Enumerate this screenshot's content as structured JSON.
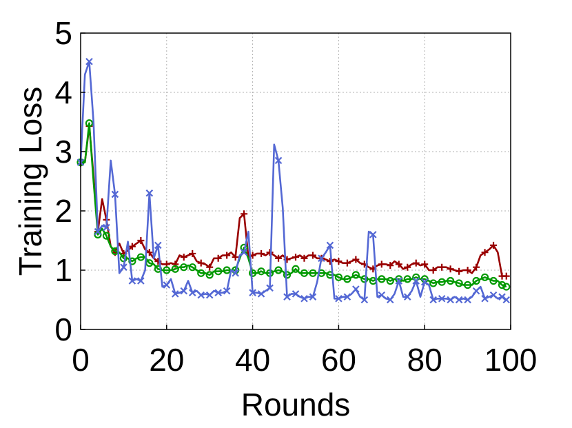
{
  "chart_data": {
    "type": "line",
    "title": "",
    "xlabel": "Rounds",
    "ylabel": "Training Loss",
    "xlim": [
      0,
      100
    ],
    "ylim": [
      0,
      5
    ],
    "xticks": [
      "0",
      "20",
      "40",
      "60",
      "80",
      "100"
    ],
    "yticks": [
      "0",
      "1",
      "2",
      "3",
      "4",
      "5"
    ],
    "grid": true,
    "legend": "none",
    "series": [
      {
        "color": "#990000",
        "marker": "plus",
        "x": [
          0,
          1,
          2,
          3,
          4,
          5,
          6,
          7,
          8,
          9,
          10,
          11,
          12,
          13,
          14,
          15,
          16,
          17,
          18,
          19,
          20,
          21,
          22,
          23,
          24,
          25,
          26,
          27,
          28,
          29,
          30,
          31,
          32,
          33,
          34,
          35,
          36,
          37,
          38,
          39,
          40,
          41,
          42,
          43,
          44,
          45,
          46,
          47,
          48,
          49,
          50,
          51,
          52,
          53,
          54,
          55,
          56,
          57,
          58,
          59,
          60,
          61,
          62,
          63,
          64,
          65,
          66,
          67,
          68,
          69,
          70,
          71,
          72,
          73,
          74,
          75,
          76,
          77,
          78,
          79,
          80,
          81,
          82,
          83,
          84,
          85,
          86,
          87,
          88,
          89,
          90,
          91,
          92,
          93,
          94,
          95,
          96,
          97,
          98,
          99
        ],
        "y": [
          2.8,
          2.82,
          3.43,
          2.6,
          1.65,
          2.2,
          1.85,
          1.4,
          1.3,
          1.45,
          1.28,
          1.33,
          1.4,
          1.45,
          1.5,
          1.35,
          1.3,
          1.2,
          1.15,
          1.1,
          1.1,
          1.12,
          1.1,
          1.25,
          1.22,
          1.25,
          1.28,
          1.15,
          1.12,
          1.1,
          1.05,
          1.2,
          1.2,
          1.25,
          1.25,
          1.3,
          1.22,
          1.88,
          1.95,
          1.22,
          1.25,
          1.28,
          1.28,
          1.25,
          1.3,
          1.25,
          1.2,
          1.25,
          1.18,
          1.2,
          1.22,
          1.25,
          1.2,
          1.25,
          1.25,
          1.2,
          1.2,
          1.18,
          1.15,
          1.18,
          1.15,
          1.12,
          1.12,
          1.15,
          1.18,
          1.12,
          1.1,
          1.05,
          1.02,
          1.08,
          1.1,
          1.1,
          1.08,
          1.15,
          1.1,
          1.02,
          1.05,
          1.1,
          1.12,
          1.08,
          1.1,
          1.0,
          1.0,
          1.05,
          1.05,
          1.05,
          1.02,
          1.0,
          0.98,
          1.0,
          1.0,
          0.95,
          1.05,
          1.25,
          1.3,
          1.35,
          1.42,
          1.3,
          0.9,
          0.9
        ]
      },
      {
        "color": "#009900",
        "marker": "circle",
        "x": [
          0,
          1,
          2,
          3,
          4,
          5,
          6,
          7,
          8,
          9,
          10,
          11,
          12,
          13,
          14,
          15,
          16,
          17,
          18,
          19,
          20,
          21,
          22,
          23,
          24,
          25,
          26,
          27,
          28,
          29,
          30,
          31,
          32,
          33,
          34,
          35,
          36,
          37,
          38,
          39,
          40,
          41,
          42,
          43,
          44,
          45,
          46,
          47,
          48,
          49,
          50,
          51,
          52,
          53,
          54,
          55,
          56,
          57,
          58,
          59,
          60,
          61,
          62,
          63,
          64,
          65,
          66,
          67,
          68,
          69,
          70,
          71,
          72,
          73,
          74,
          75,
          76,
          77,
          78,
          79,
          80,
          81,
          82,
          83,
          84,
          85,
          86,
          87,
          88,
          89,
          90,
          91,
          92,
          93,
          94,
          95,
          96,
          97,
          98,
          99
        ],
        "y": [
          2.82,
          2.82,
          3.48,
          2.5,
          1.6,
          1.7,
          1.58,
          1.4,
          1.32,
          1.3,
          1.2,
          1.2,
          1.15,
          1.2,
          1.22,
          1.22,
          1.12,
          1.1,
          1.02,
          1.0,
          1.0,
          1.0,
          1.02,
          1.05,
          1.05,
          1.08,
          1.05,
          1.0,
          0.95,
          0.95,
          0.92,
          0.98,
          0.98,
          0.98,
          1.0,
          1.0,
          1.0,
          1.2,
          1.38,
          1.2,
          0.95,
          0.95,
          0.98,
          0.95,
          0.95,
          0.98,
          1.0,
          0.98,
          0.92,
          0.95,
          1.02,
          0.95,
          0.95,
          0.95,
          0.95,
          0.95,
          0.95,
          0.95,
          0.92,
          0.92,
          0.88,
          0.85,
          0.85,
          0.88,
          0.92,
          0.88,
          0.85,
          0.85,
          0.82,
          0.85,
          0.85,
          0.85,
          0.82,
          0.85,
          0.85,
          0.82,
          0.85,
          0.85,
          0.88,
          0.85,
          0.85,
          0.82,
          0.78,
          0.8,
          0.8,
          0.82,
          0.82,
          0.8,
          0.78,
          0.75,
          0.75,
          0.75,
          0.82,
          0.85,
          0.88,
          0.85,
          0.82,
          0.82,
          0.75,
          0.72
        ]
      },
      {
        "color": "#5468d4",
        "marker": "x",
        "x": [
          0,
          1,
          2,
          3,
          4,
          5,
          6,
          7,
          8,
          9,
          10,
          11,
          12,
          13,
          14,
          15,
          16,
          17,
          18,
          19,
          20,
          21,
          22,
          23,
          24,
          25,
          26,
          27,
          28,
          29,
          30,
          31,
          32,
          33,
          34,
          35,
          36,
          37,
          38,
          39,
          40,
          41,
          42,
          43,
          44,
          45,
          46,
          47,
          48,
          49,
          50,
          51,
          52,
          53,
          54,
          55,
          56,
          57,
          58,
          59,
          60,
          61,
          62,
          63,
          64,
          65,
          66,
          67,
          68,
          69,
          70,
          71,
          72,
          73,
          74,
          75,
          76,
          77,
          78,
          79,
          80,
          81,
          82,
          83,
          84,
          85,
          86,
          87,
          88,
          89,
          90,
          91,
          92,
          93,
          94,
          95,
          96,
          97,
          98,
          99
        ],
        "y": [
          2.82,
          4.3,
          4.52,
          3.5,
          1.65,
          1.75,
          1.72,
          2.85,
          2.28,
          0.95,
          1.05,
          1.48,
          0.82,
          0.85,
          0.82,
          1.0,
          2.3,
          1.2,
          1.42,
          0.72,
          0.75,
          0.85,
          0.6,
          0.62,
          0.65,
          0.82,
          0.62,
          0.65,
          0.58,
          0.6,
          0.58,
          0.65,
          0.62,
          0.62,
          0.65,
          1.0,
          0.95,
          1.25,
          1.3,
          1.65,
          0.62,
          0.62,
          0.6,
          0.65,
          0.7,
          3.12,
          2.85,
          2.05,
          0.55,
          0.6,
          0.6,
          0.55,
          0.52,
          0.55,
          0.55,
          0.8,
          1.2,
          1.3,
          1.42,
          0.52,
          0.52,
          0.55,
          0.55,
          0.6,
          0.68,
          0.55,
          0.5,
          1.65,
          1.6,
          0.55,
          0.58,
          0.52,
          0.5,
          0.6,
          0.82,
          0.55,
          0.55,
          0.65,
          0.82,
          0.55,
          0.8,
          0.75,
          0.5,
          0.52,
          0.52,
          0.52,
          0.5,
          0.55,
          0.5,
          0.52,
          0.5,
          0.55,
          0.65,
          0.72,
          0.52,
          0.55,
          0.58,
          0.52,
          0.55,
          0.5
        ]
      }
    ]
  }
}
